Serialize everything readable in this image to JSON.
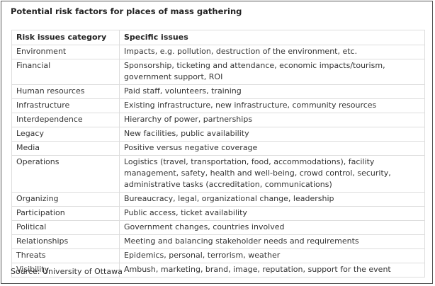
{
  "title": "Potential risk factors for places of mass gathering",
  "table": {
    "header": [
      "Risk issues category",
      "Specific issues"
    ],
    "rows": [
      [
        "Environment",
        "Impacts, e.g. pollution, destruction of the environment, etc."
      ],
      [
        "Financial",
        "Sponsorship, ticketing and attendance, economic impacts/tourism, government support, ROI"
      ],
      [
        "Human resources",
        "Paid staff, volunteers, training"
      ],
      [
        "Infrastructure",
        "Existing infrastructure, new infrastructure, community resources"
      ],
      [
        "Interdependence",
        "Hierarchy of power, partnerships"
      ],
      [
        "Legacy",
        "New facilities, public availability"
      ],
      [
        "Media",
        "Positive versus negative coverage"
      ],
      [
        "Operations",
        "Logistics (travel, transportation, food, accommodations), facility management, safety, health and well-being, crowd control, security, administrative tasks (accreditation, communications)"
      ],
      [
        "Organizing",
        "Bureaucracy, legal, organizational change, leadership"
      ],
      [
        "Participation",
        "Public access, ticket availability"
      ],
      [
        "Political",
        "Government changes, countries involved"
      ],
      [
        "Relationships",
        "Meeting and balancing stakeholder needs and requirements"
      ],
      [
        "Threats",
        "Epidemics, personal, terrorism, weather"
      ],
      [
        "Visibility",
        "Ambush, marketing, brand, image, reputation, support for the event"
      ]
    ]
  },
  "source": "Source: University of Ottawa"
}
